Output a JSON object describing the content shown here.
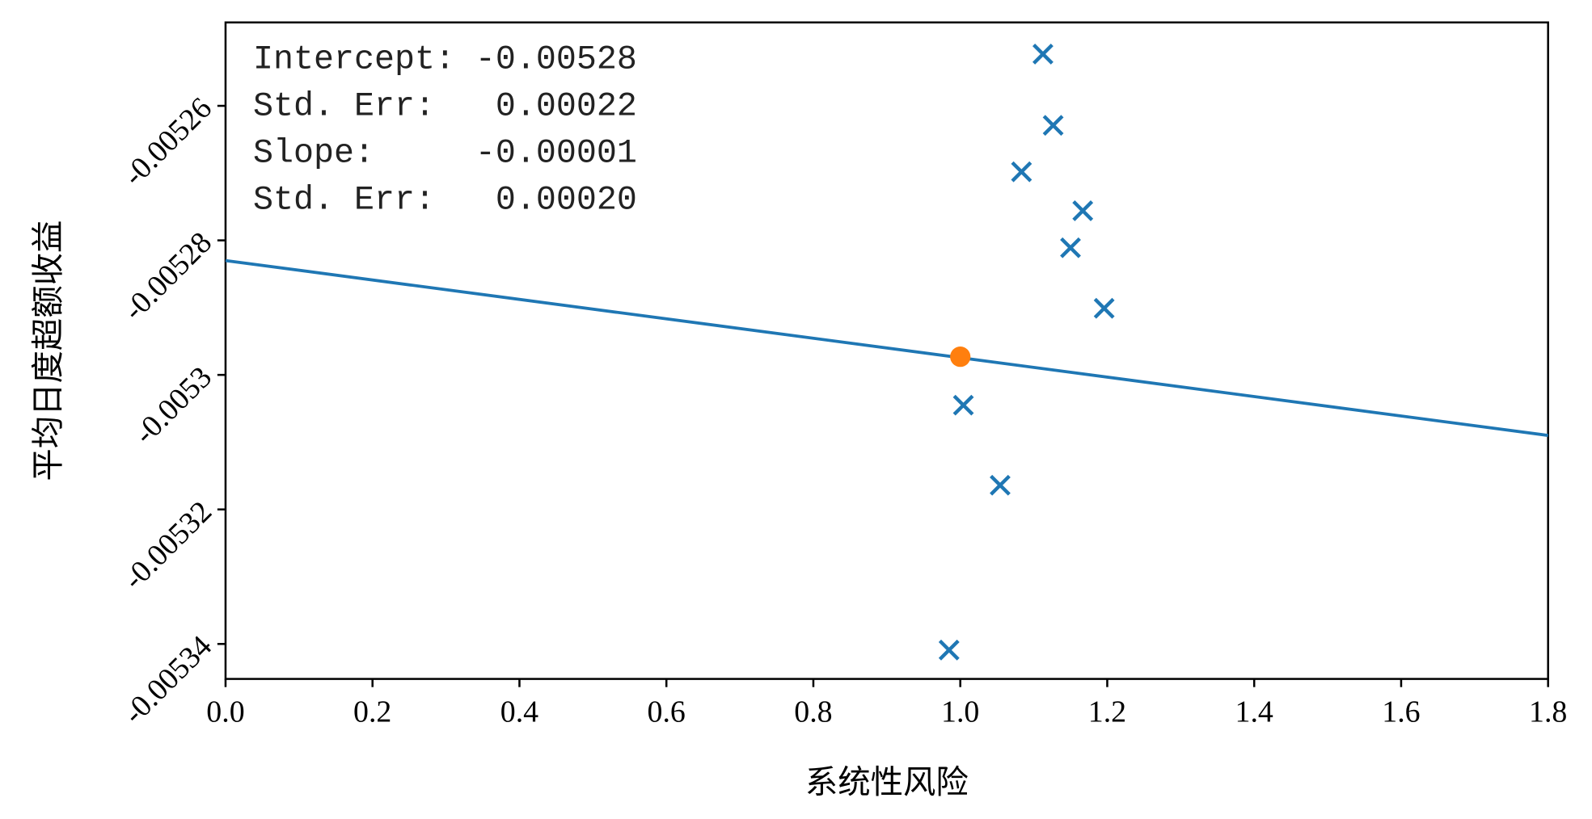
{
  "chart_data": {
    "type": "scatter",
    "xlabel": "系统性风险",
    "ylabel": "平均日度超额收益",
    "annotation": [
      "Intercept: -0.00528",
      "Std. Err:   0.00022",
      "Slope:     -0.00001",
      "Std. Err:   0.00020"
    ],
    "xlim": [
      0,
      1.8
    ],
    "xticks": [
      {
        "value": 0,
        "label": "0.0"
      },
      {
        "value": 0.2,
        "label": "0.2"
      },
      {
        "value": 0.4,
        "label": "0.4"
      },
      {
        "value": 0.6,
        "label": "0.6"
      },
      {
        "value": 0.8,
        "label": "0.8"
      },
      {
        "value": 1,
        "label": "1.0"
      },
      {
        "value": 1.2,
        "label": "1.2"
      },
      {
        "value": 1.4,
        "label": "1.4"
      },
      {
        "value": 1.6,
        "label": "1.6"
      },
      {
        "value": 1.8,
        "label": "1.8"
      }
    ],
    "ylim": [
      -0.0053452,
      -0.0052476
    ],
    "yticks": [
      -0.00526,
      -0.00528,
      -0.0053,
      -0.00532,
      -0.00534
    ],
    "series": [
      {
        "color": "#1f77b4",
        "marker": "x",
        "x": [
          1.1125,
          1.1264,
          1.0833,
          1.1667,
          1.15,
          1.1958,
          1.0042,
          1.0542,
          0.9847
        ],
        "values": [
          -0.0052523,
          -0.0052629,
          -0.0052698,
          -0.0052756,
          -0.0052811,
          -0.0052901,
          -0.0053045,
          -0.0053164,
          -0.0053409
        ]
      },
      {
        "color": "#ff7f0e",
        "marker": "o",
        "x": [
          1.0
        ],
        "values": [
          -0.0052973
        ]
      }
    ],
    "line": {
      "color": "#1f77b4",
      "x": [
        0,
        1.8
      ],
      "values": [
        -0.005283,
        -0.005309
      ]
    }
  }
}
